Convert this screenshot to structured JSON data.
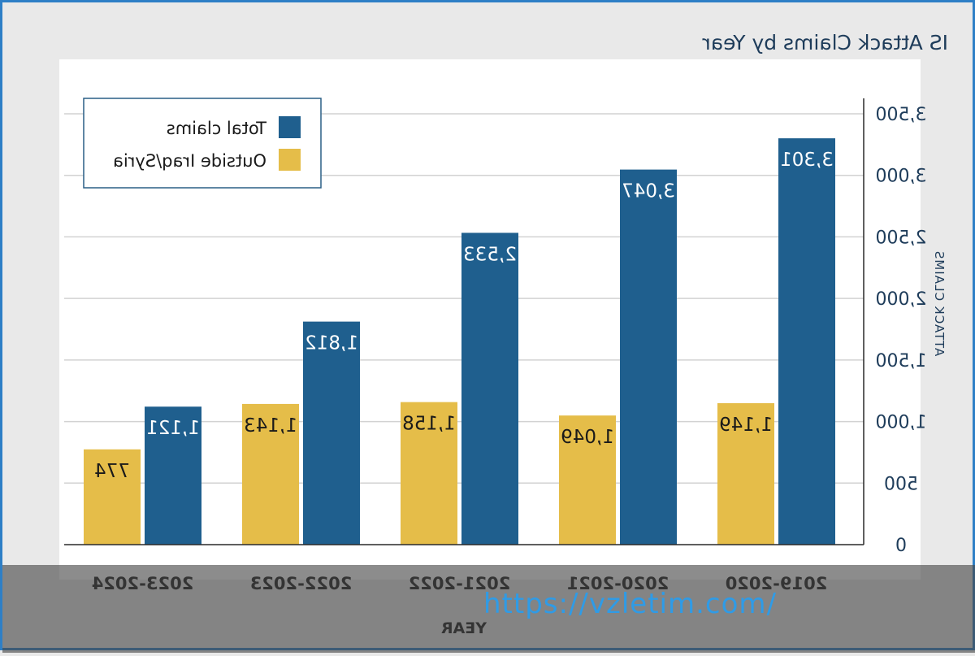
{
  "chart_data": {
    "type": "bar",
    "title": "IS Attack Claims by Year",
    "xlabel": "YEAR",
    "ylabel": "ATTACK CLAIMS",
    "ylim": [
      0,
      3500
    ],
    "yticks": [
      0,
      500,
      1000,
      1500,
      2000,
      2500,
      3000,
      3500
    ],
    "ytick_labels": [
      "0",
      "500",
      "1,000",
      "1,500",
      "2,000",
      "2,500",
      "3,000",
      "3,500"
    ],
    "grid": true,
    "legend_position": "top-left",
    "categories": [
      "2019-2020",
      "2020-2021",
      "2021-2022",
      "2022-2023",
      "2023-2024"
    ],
    "series": [
      {
        "name": "Total claims",
        "color": "#1f5f8e",
        "values": [
          3301,
          3047,
          2533,
          1812,
          1121
        ],
        "labels": [
          "3,301",
          "3,047",
          "2,533",
          "1,812",
          "1,121"
        ]
      },
      {
        "name": "Outside Iraq/Syria",
        "color": "#e5bd49",
        "values": [
          1149,
          1049,
          1158,
          1143,
          774
        ],
        "labels": [
          "1,149",
          "1,049",
          "1,158",
          "1,143",
          "774"
        ]
      }
    ]
  },
  "watermark": "https://vzletim.com/"
}
